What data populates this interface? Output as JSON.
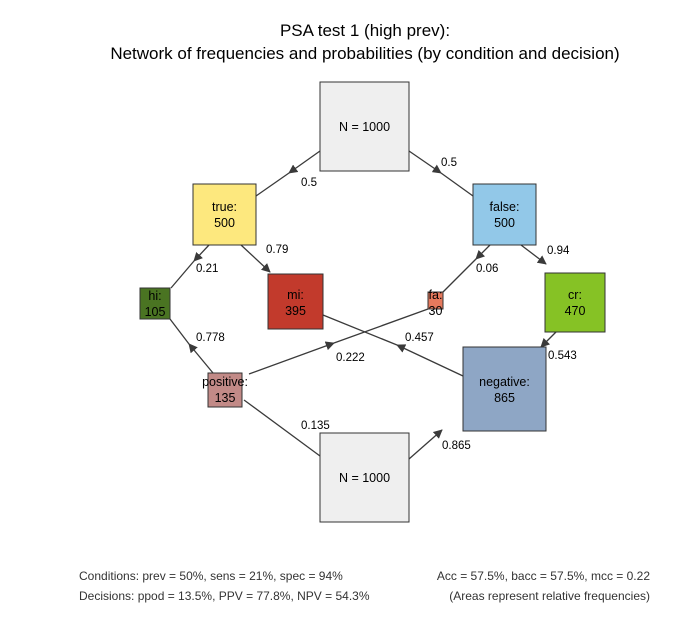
{
  "title": {
    "line1": "PSA test 1 (high prev):",
    "line2": "Network of frequencies and probabilities (by condition and decision)"
  },
  "nodes": {
    "n_top": {
      "line1": "N = 1000",
      "line2": "",
      "color": "#efefef"
    },
    "true": {
      "line1": "true:",
      "line2": "500",
      "color": "#fde87e"
    },
    "false": {
      "line1": "false:",
      "line2": "500",
      "color": "#92c8e8"
    },
    "hi": {
      "line1": "hi:",
      "line2": "105",
      "color": "#4a7422"
    },
    "mi": {
      "line1": "mi:",
      "line2": "395",
      "color": "#c23a2c"
    },
    "fa": {
      "line1": "fa:",
      "line2": "30",
      "color": "#e6795d"
    },
    "cr": {
      "line1": "cr:",
      "line2": "470",
      "color": "#86c225"
    },
    "positive": {
      "line1": "positive:",
      "line2": "135",
      "color": "#c28a87"
    },
    "negative": {
      "line1": "negative:",
      "line2": "865",
      "color": "#8ea6c5"
    },
    "n_bottom": {
      "line1": "N = 1000",
      "line2": "",
      "color": "#efefef"
    }
  },
  "probabilities": {
    "n_true": "0.5",
    "n_false": "0.5",
    "true_hi": "0.21",
    "true_mi": "0.79",
    "false_fa": "0.06",
    "false_cr": "0.94",
    "pos_hi": "0.778",
    "pos_fa": "0.222",
    "neg_mi": "0.457",
    "neg_cr": "0.543",
    "n_pos": "0.135",
    "n_neg": "0.865"
  },
  "footer": {
    "conditions": "Conditions: prev = 50%, sens = 21%, spec = 94%",
    "accuracy": "Acc = 57.5%, bacc = 57.5%, mcc = 0.22",
    "decisions": "Decisions:  ppod = 13.5%, PPV = 77.8%, NPV = 54.3%",
    "note": "(Areas represent relative frequencies)"
  }
}
